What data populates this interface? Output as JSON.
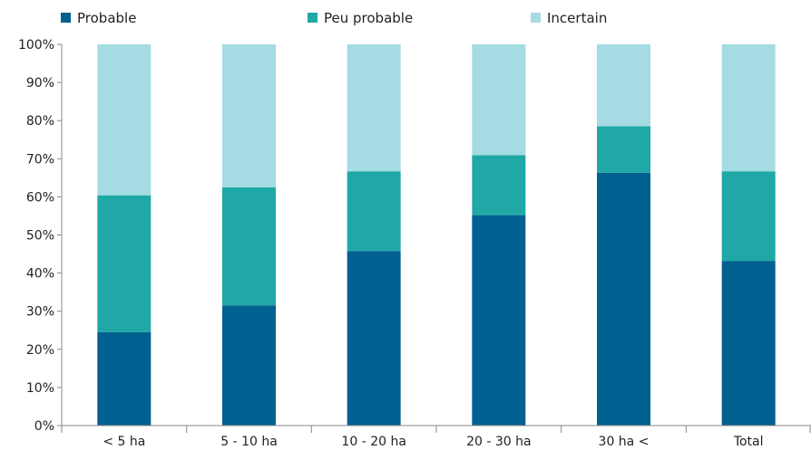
{
  "chart_data": {
    "type": "bar",
    "stacked": true,
    "categories": [
      "< 5 ha",
      "5 - 10 ha",
      "10 - 20 ha",
      "20 - 30 ha",
      "30 ha <",
      "Total"
    ],
    "series": [
      {
        "name": "Probable",
        "color": "#00608f",
        "values": [
          24.5,
          31.5,
          45.8,
          55.2,
          66.3,
          43.2
        ]
      },
      {
        "name": "Peu probable",
        "color": "#1fa8a6",
        "values": [
          35.9,
          31.0,
          20.9,
          15.7,
          12.2,
          23.5
        ]
      },
      {
        "name": "Incertain",
        "color": "#a5dbe3",
        "values": [
          39.6,
          37.5,
          33.3,
          29.1,
          21.5,
          33.3
        ]
      }
    ],
    "y_ticks": [
      "0%",
      "10%",
      "20%",
      "30%",
      "40%",
      "50%",
      "60%",
      "70%",
      "80%",
      "90%",
      "100%"
    ],
    "ylim": [
      0,
      100
    ],
    "grid": false,
    "legend_position": "top"
  }
}
